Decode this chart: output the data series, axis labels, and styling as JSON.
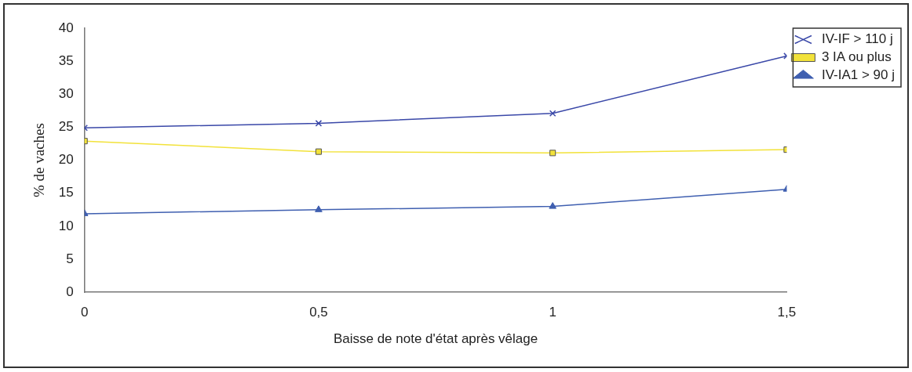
{
  "chart_data": {
    "type": "line",
    "xlabel": "Baisse de note d'état après vêlage",
    "ylabel": "% de vaches",
    "x": [
      0,
      0.5,
      1,
      1.5
    ],
    "series": [
      {
        "name": "IV-IF > 110 j",
        "color": "#3a48a8",
        "marker": "cross",
        "values": [
          24.9,
          25.6,
          27.1,
          35.8
        ]
      },
      {
        "name": "3 IA ou plus",
        "color": "#f2e23a",
        "marker": "square",
        "values": [
          22.9,
          21.3,
          21.1,
          21.6
        ]
      },
      {
        "name": "IV-IA1 > 90 j",
        "color": "#3f5fb0",
        "marker": "triangle",
        "values": [
          11.9,
          12.5,
          13.0,
          15.6
        ]
      }
    ],
    "xlim": [
      0,
      1.5
    ],
    "xticks": [
      0,
      {
        "value": 0.5,
        "label": "0,5"
      },
      1,
      {
        "value": 1.5,
        "label": "1,5"
      }
    ],
    "ylim": [
      0,
      40
    ],
    "yticks": [
      0,
      5,
      10,
      15,
      20,
      25,
      30,
      35,
      40
    ],
    "grid": false,
    "legend": "top right",
    "line_style": "solid"
  }
}
